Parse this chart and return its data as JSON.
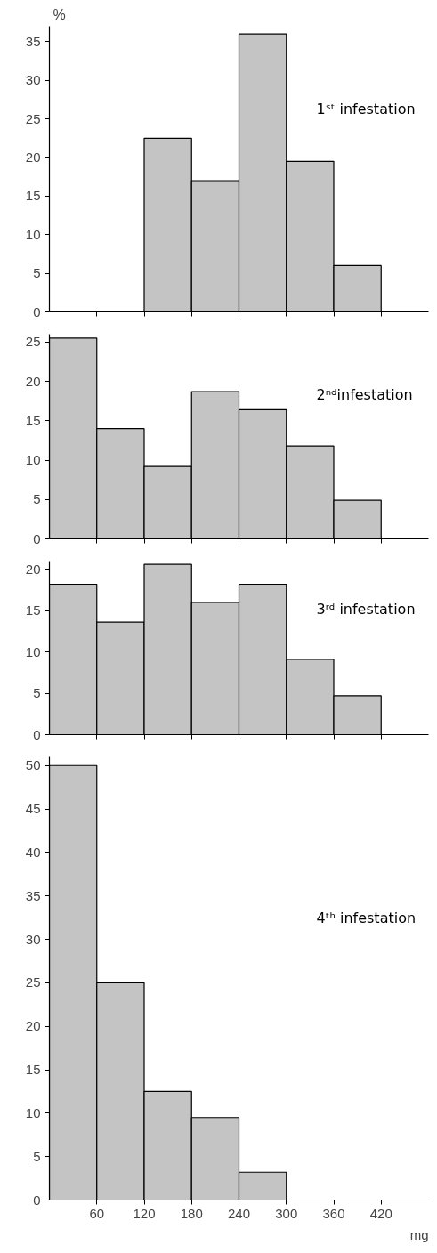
{
  "chart_data": [
    {
      "type": "histogram",
      "ylabel": "%",
      "bins": [
        120,
        180,
        240,
        300,
        360,
        420
      ],
      "values": [
        22.5,
        17,
        36,
        19.5,
        6
      ],
      "color": "#c4c4c4",
      "xlim": [
        0,
        480
      ],
      "ylim": [
        0,
        37
      ],
      "yticks": [
        0,
        5,
        10,
        15,
        20,
        25,
        30,
        35
      ],
      "xticks": [
        {
          "value": 60,
          "label": null
        },
        {
          "value": 120,
          "label": null
        },
        {
          "value": 180,
          "label": null
        },
        {
          "value": 240,
          "label": null
        },
        {
          "value": 300,
          "label": null
        },
        {
          "value": 360,
          "label": null
        },
        {
          "value": 420,
          "label": null
        }
      ],
      "tick_labels": "y",
      "grid": false,
      "annotations": [
        "1ˢᵗ infestation"
      ]
    },
    {
      "type": "histogram",
      "bins": [
        0,
        60,
        120,
        180,
        240,
        300,
        360,
        420
      ],
      "values": [
        25.5,
        14,
        9.2,
        18.7,
        16.4,
        11.8,
        4.9
      ],
      "color": "#c4c4c4",
      "xlim": [
        0,
        480
      ],
      "ylim": [
        0,
        26
      ],
      "yticks": [
        0,
        5,
        10,
        15,
        20,
        25
      ],
      "xticks": [
        {
          "value": 60,
          "label": null
        },
        {
          "value": 120,
          "label": null
        },
        {
          "value": 180,
          "label": null
        },
        {
          "value": 240,
          "label": null
        },
        {
          "value": 300,
          "label": null
        },
        {
          "value": 360,
          "label": null
        },
        {
          "value": 420,
          "label": null
        }
      ],
      "tick_labels": "y",
      "grid": false,
      "annotations": [
        "2ⁿᵈinfestation"
      ]
    },
    {
      "type": "histogram",
      "bins": [
        0,
        60,
        120,
        180,
        240,
        300,
        360,
        420
      ],
      "values": [
        18.2,
        13.6,
        20.6,
        16,
        18.2,
        9.1,
        4.7
      ],
      "color": "#c4c4c4",
      "xlim": [
        0,
        480
      ],
      "ylim": [
        0,
        21
      ],
      "yticks": [
        0,
        5,
        10,
        15,
        20
      ],
      "xticks": [
        {
          "value": 60,
          "label": null
        },
        {
          "value": 120,
          "label": null
        },
        {
          "value": 180,
          "label": null
        },
        {
          "value": 240,
          "label": null
        },
        {
          "value": 300,
          "label": null
        },
        {
          "value": 360,
          "label": null
        },
        {
          "value": 420,
          "label": null
        }
      ],
      "tick_labels": "y",
      "grid": false,
      "annotations": [
        "3ʳᵈ infestation"
      ]
    },
    {
      "type": "histogram",
      "xlabel": "mg",
      "bins": [
        0,
        60,
        120,
        180,
        240,
        300
      ],
      "values": [
        50,
        25,
        12.5,
        9.5,
        3.2
      ],
      "color": "#c4c4c4",
      "xlim": [
        0,
        480
      ],
      "ylim": [
        0,
        51
      ],
      "yticks": [
        0,
        5,
        10,
        15,
        20,
        25,
        30,
        35,
        40,
        45,
        50
      ],
      "xticks": [
        60,
        120,
        180,
        240,
        300,
        360,
        420
      ],
      "grid": false,
      "annotations": [
        "4ᵗʰ infestation"
      ]
    }
  ]
}
